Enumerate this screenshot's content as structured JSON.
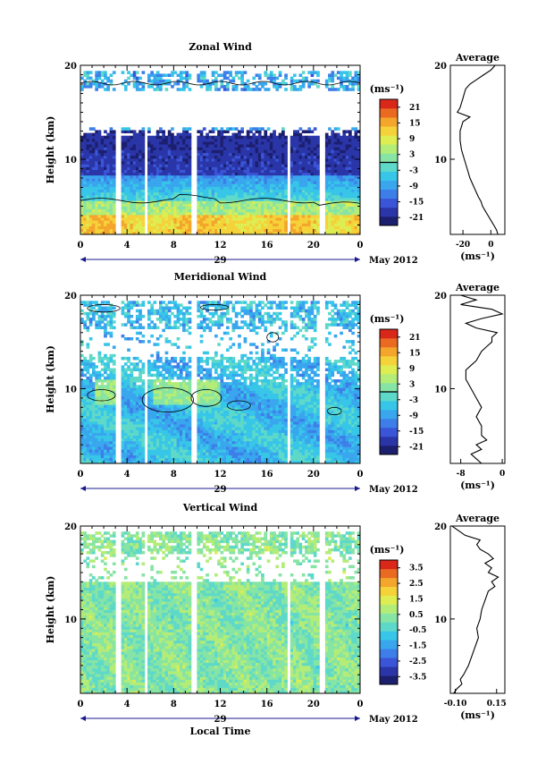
{
  "chart_data": [
    {
      "type": "heatmap",
      "title": "Zonal Wind",
      "ylabel": "Height (km)",
      "xlabel": "",
      "xlim": [
        0,
        24
      ],
      "ylim": [
        2,
        20
      ],
      "xticks": [
        "0",
        "4",
        "8",
        "12",
        "16",
        "20",
        "0"
      ],
      "yticks": [
        "20",
        "10"
      ],
      "date_marker": "29",
      "date_right": "May 2012",
      "colorbar": {
        "unit": "(ms⁻¹)",
        "ticks": [
          "21",
          "15",
          "9",
          "3",
          "-3",
          "-9",
          "-15",
          "-21"
        ],
        "range": [
          -24,
          24
        ],
        "contour": 0
      },
      "profile": {
        "title": "Average",
        "xticks": [
          "-20",
          "0"
        ],
        "xlabel": "(ms⁻¹)",
        "xlim": [
          -29,
          10
        ],
        "yticks": [
          "20",
          "10"
        ],
        "height": [
          2,
          2.5,
          3,
          3.5,
          4,
          4.5,
          5,
          5.5,
          6,
          7,
          8,
          9,
          10,
          11,
          12,
          13,
          13.5,
          14,
          14.5,
          15,
          15.5,
          16,
          16.5,
          17,
          17.5,
          18,
          18.5,
          19,
          19.5,
          20
        ],
        "values": [
          5,
          4,
          2,
          0,
          -2,
          -4,
          -6,
          -7,
          -9,
          -12,
          -15,
          -17,
          -19,
          -21,
          -22,
          -22,
          -21,
          -20,
          -15,
          -24,
          -22,
          -21,
          -20,
          -19,
          -18,
          -15,
          -10,
          -5,
          0,
          3
        ]
      }
    },
    {
      "type": "heatmap",
      "title": "Meridional Wind",
      "ylabel": "Height (km)",
      "xlabel": "",
      "xlim": [
        0,
        24
      ],
      "ylim": [
        2,
        20
      ],
      "xticks": [
        "0",
        "4",
        "8",
        "12",
        "16",
        "20",
        "0"
      ],
      "yticks": [
        "20",
        "10"
      ],
      "date_marker": "29",
      "date_right": "May 2012",
      "colorbar": {
        "unit": "(ms⁻¹)",
        "ticks": [
          "21",
          "15",
          "9",
          "3",
          "-3",
          "-9",
          "-15",
          "-21"
        ],
        "range": [
          -24,
          24
        ],
        "contour": 0
      },
      "profile": {
        "title": "Average",
        "xticks": [
          "-8",
          "0"
        ],
        "xlabel": "(ms⁻¹)",
        "xlim": [
          -10,
          0.5
        ],
        "yticks": [
          "20",
          "10"
        ],
        "height": [
          2,
          2.5,
          3,
          3.5,
          4,
          4.5,
          5,
          6,
          7,
          8,
          9,
          10,
          11,
          11.5,
          12,
          12.5,
          13,
          14,
          14.5,
          15,
          15.5,
          16,
          16.5,
          17,
          17.5,
          18,
          18.5,
          19,
          19.5,
          20
        ],
        "values": [
          -4,
          -5,
          -6,
          -4,
          -5,
          -3,
          -4,
          -4,
          -5,
          -4,
          -5,
          -6,
          -7,
          -7,
          -7,
          -6,
          -5,
          -4,
          -3,
          -2,
          -2,
          -1,
          -5,
          -7,
          -4,
          0,
          -2,
          -8,
          -5,
          -8
        ]
      }
    },
    {
      "type": "heatmap",
      "title": "Vertical Wind",
      "ylabel": "Height (km)",
      "xlabel": "Local Time",
      "xlim": [
        0,
        24
      ],
      "ylim": [
        2,
        20
      ],
      "xticks": [
        "0",
        "4",
        "8",
        "12",
        "16",
        "20",
        "0"
      ],
      "yticks": [
        "20",
        "10"
      ],
      "date_marker": "29",
      "date_right": "May 2012",
      "colorbar": {
        "unit": "(ms⁻¹)",
        "ticks": [
          "3.5",
          "2.5",
          "1.5",
          "0.5",
          "-0.5",
          "-1.5",
          "-2.5",
          "-3.5"
        ],
        "range": [
          -4,
          4
        ],
        "contour": null
      },
      "profile": {
        "title": "Average",
        "xticks": [
          "-0.10",
          "0.15"
        ],
        "xlabel": "(ms⁻¹)",
        "xlim": [
          -0.13,
          0.2
        ],
        "yticks": [
          "20",
          "10"
        ],
        "height": [
          2,
          2.5,
          3,
          3.5,
          4,
          5,
          6,
          7,
          8,
          9,
          10,
          11,
          12,
          13,
          13.5,
          14,
          14.5,
          15,
          15.5,
          16,
          16.5,
          17,
          17.5,
          18,
          18.5,
          19,
          19.5,
          20
        ],
        "values": [
          -0.11,
          -0.09,
          -0.06,
          -0.07,
          -0.05,
          -0.02,
          0.0,
          0.02,
          0.04,
          0.03,
          0.05,
          0.06,
          0.08,
          0.1,
          0.14,
          0.12,
          0.16,
          0.1,
          0.12,
          0.08,
          0.13,
          0.1,
          0.05,
          0.03,
          0.05,
          -0.04,
          -0.08,
          -0.12
        ]
      }
    }
  ]
}
